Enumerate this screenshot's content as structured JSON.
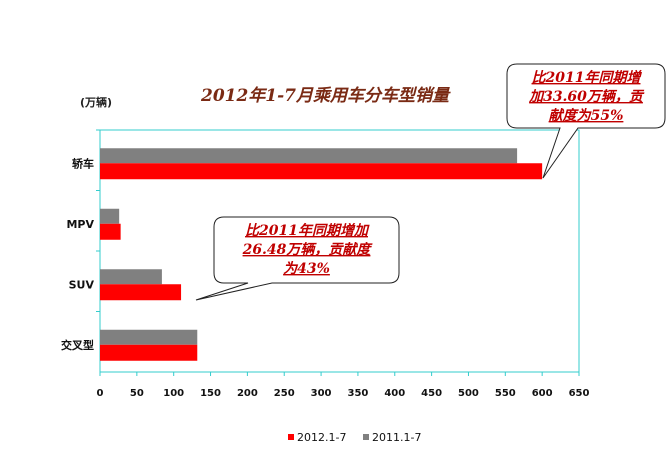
{
  "chart_data": {
    "type": "bar",
    "orientation": "horizontal",
    "title": "2012年1-7月乘用车分车型销量",
    "unit_label": "(万辆)",
    "categories": [
      "轿车",
      "MPV",
      "SUV",
      "交叉型"
    ],
    "series": [
      {
        "name": "2012.1-7",
        "color": "#ff0000",
        "values": [
          600,
          28,
          110,
          132
        ]
      },
      {
        "name": "2011.1-7",
        "color": "#808080",
        "values": [
          566,
          26,
          84,
          132
        ]
      }
    ],
    "xlim": [
      0,
      650
    ],
    "xticks": [
      "0",
      "50",
      "100",
      "150",
      "200",
      "250",
      "300",
      "350",
      "400",
      "450",
      "500",
      "550",
      "600",
      "650"
    ],
    "plot_border_color": "#33cccc",
    "legend_position": "bottom",
    "annotations": [
      {
        "lines": [
          "比2011年同期增",
          "加33.60万辆，贡",
          "献度为55%"
        ],
        "target_category": "轿车"
      },
      {
        "lines": [
          "比2011年同期增加",
          "26.48万辆，贡献度",
          "为43%"
        ],
        "target_category": "SUV"
      }
    ]
  }
}
